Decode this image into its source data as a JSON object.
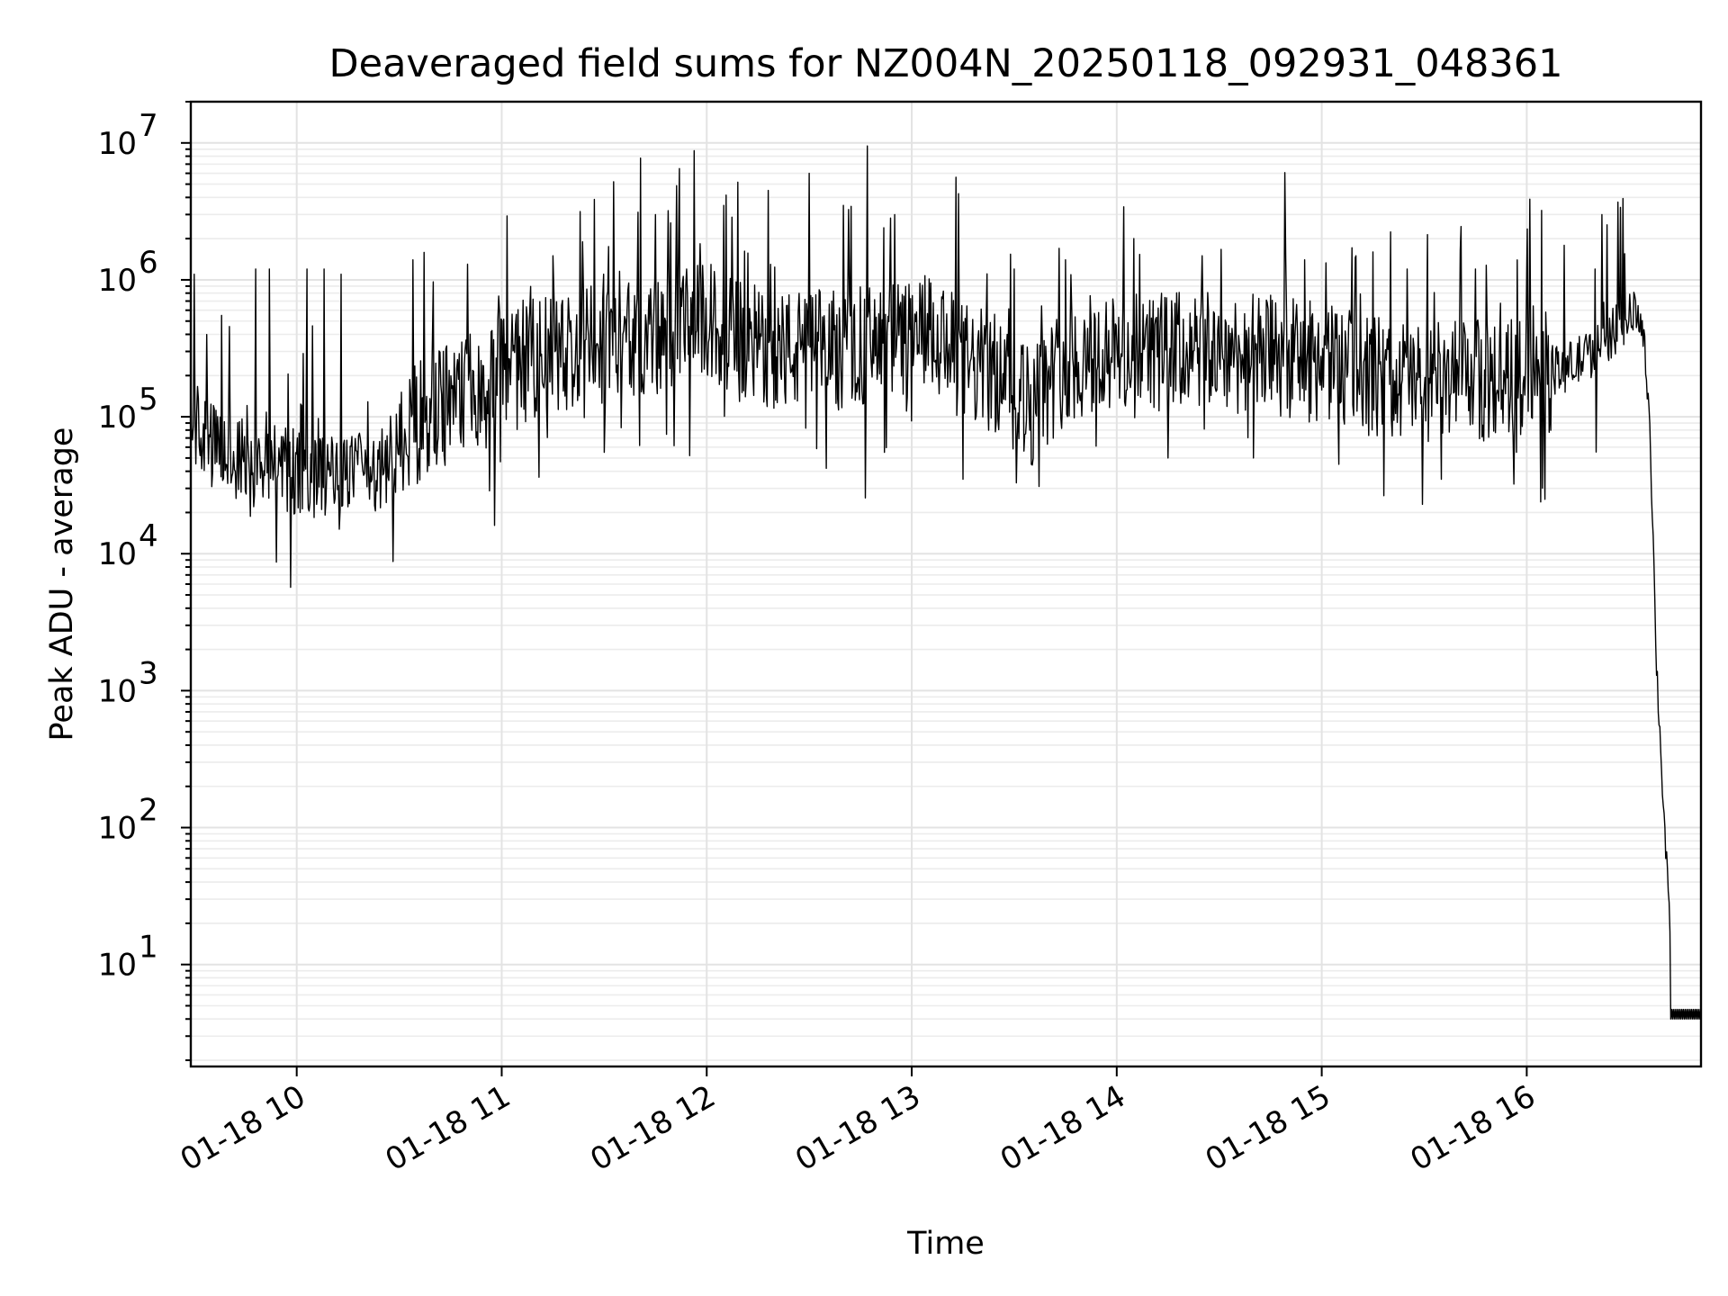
{
  "chart_data": {
    "type": "line",
    "title": "Deaveraged field sums for NZ004N_20250118_092931_048361",
    "xlabel": "Time",
    "ylabel": "Peak ADU - average",
    "yscale": "log",
    "ylim": [
      1.8,
      20000000
    ],
    "xlim": [
      "2025-01-18 09:29",
      "2025-01-18 16:51"
    ],
    "grid": true,
    "x_ticks": [
      "2025-01-18 10:00",
      "2025-01-18 11:00",
      "2025-01-18 12:00",
      "2025-01-18 13:00",
      "2025-01-18 14:00",
      "2025-01-18 15:00",
      "2025-01-18 16:00"
    ],
    "x_tick_labels": [
      "01-18 10",
      "01-18 11",
      "01-18 12",
      "01-18 13",
      "01-18 14",
      "01-18 15",
      "01-18 16"
    ],
    "y_ticks": [
      10,
      100,
      1000,
      10000,
      100000,
      1000000,
      10000000
    ],
    "y_tick_labels": [
      {
        "base": "10",
        "exp": "1"
      },
      {
        "base": "10",
        "exp": "2"
      },
      {
        "base": "10",
        "exp": "3"
      },
      {
        "base": "10",
        "exp": "4"
      },
      {
        "base": "10",
        "exp": "5"
      },
      {
        "base": "10",
        "exp": "6"
      },
      {
        "base": "10",
        "exp": "7"
      }
    ],
    "line_color": "#000000",
    "series": [
      {
        "x": [
          "2025-01-18 09:29",
          "2025-01-18 09:35",
          "2025-01-18 09:45",
          "2025-01-18 10:00",
          "2025-01-18 10:15",
          "2025-01-18 10:25",
          "2025-01-18 10:35",
          "2025-01-18 10:50",
          "2025-01-18 11:05",
          "2025-01-18 11:20",
          "2025-01-18 11:35",
          "2025-01-18 11:50",
          "2025-01-18 12:00",
          "2025-01-18 12:10",
          "2025-01-18 12:25",
          "2025-01-18 12:40",
          "2025-01-18 12:55",
          "2025-01-18 13:05",
          "2025-01-18 13:15",
          "2025-01-18 13:25",
          "2025-01-18 13:35",
          "2025-01-18 13:45",
          "2025-01-18 14:00",
          "2025-01-18 14:15",
          "2025-01-18 14:30",
          "2025-01-18 14:45",
          "2025-01-18 15:00",
          "2025-01-18 15:15",
          "2025-01-18 15:30",
          "2025-01-18 15:45",
          "2025-01-18 16:00",
          "2025-01-18 16:10",
          "2025-01-18 16:20",
          "2025-01-18 16:30",
          "2025-01-18 16:32",
          "2025-01-18 16:34",
          "2025-01-18 16:36",
          "2025-01-18 16:38",
          "2025-01-18 16:40",
          "2025-01-18 16:42",
          "2025-01-18 16:45",
          "2025-01-18 16:51"
        ],
        "values": [
          100000,
          60000,
          45000,
          40000,
          35000,
          40000,
          90000,
          150000,
          250000,
          300000,
          350000,
          400000,
          500000,
          350000,
          300000,
          320000,
          350000,
          400000,
          250000,
          200000,
          120000,
          250000,
          280000,
          300000,
          300000,
          280000,
          250000,
          200000,
          180000,
          180000,
          200000,
          220000,
          300000,
          550000,
          550000,
          450000,
          100000,
          1500,
          150,
          15,
          4,
          4
        ]
      }
    ],
    "peaks": {
      "x": [
        "2025-01-18 09:30",
        "2025-01-18 09:38",
        "2025-01-18 09:48",
        "2025-01-18 09:52",
        "2025-01-18 10:03",
        "2025-01-18 10:08",
        "2025-01-18 10:13",
        "2025-01-18 10:34",
        "2025-01-18 10:50",
        "2025-01-18 11:15",
        "2025-01-18 11:30",
        "2025-01-18 11:45",
        "2025-01-18 11:52",
        "2025-01-18 12:05",
        "2025-01-18 12:18",
        "2025-01-18 12:30",
        "2025-01-18 12:40",
        "2025-01-18 12:47",
        "2025-01-18 12:55",
        "2025-01-18 13:15",
        "2025-01-18 13:30",
        "2025-01-18 13:45",
        "2025-01-18 14:05",
        "2025-01-18 14:25",
        "2025-01-18 14:40",
        "2025-01-18 14:55",
        "2025-01-18 15:10",
        "2025-01-18 15:25",
        "2025-01-18 15:45",
        "2025-01-18 16:00",
        "2025-01-18 16:20",
        "2025-01-18 16:22"
      ],
      "values": [
        1100000,
        550000,
        1200000,
        1200000,
        1200000,
        1200000,
        1100000,
        1400000,
        1300000,
        1500000,
        1600000,
        3000000,
        6500000,
        3500000,
        4500000,
        6000000,
        3500000,
        9500000,
        3000000,
        3000000,
        1200000,
        1400000,
        2000000,
        1500000,
        1500000,
        1400000,
        1500000,
        1200000,
        1200000,
        1200000,
        1200000,
        3000000
      ]
    },
    "troughs": {
      "x": [
        "2025-01-18 10:01",
        "2025-01-18 10:15",
        "2025-01-18 11:30",
        "2025-01-18 11:55",
        "2025-01-18 12:35",
        "2025-01-18 12:52",
        "2025-01-18 13:15",
        "2025-01-18 13:35",
        "2025-01-18 14:15",
        "2025-01-18 14:40",
        "2025-01-18 15:05",
        "2025-01-18 15:35",
        "2025-01-18 15:57"
      ],
      "values": [
        20000,
        22000,
        55000,
        52000,
        42000,
        55000,
        35000,
        45000,
        50000,
        50000,
        45000,
        35000,
        55000
      ]
    }
  }
}
